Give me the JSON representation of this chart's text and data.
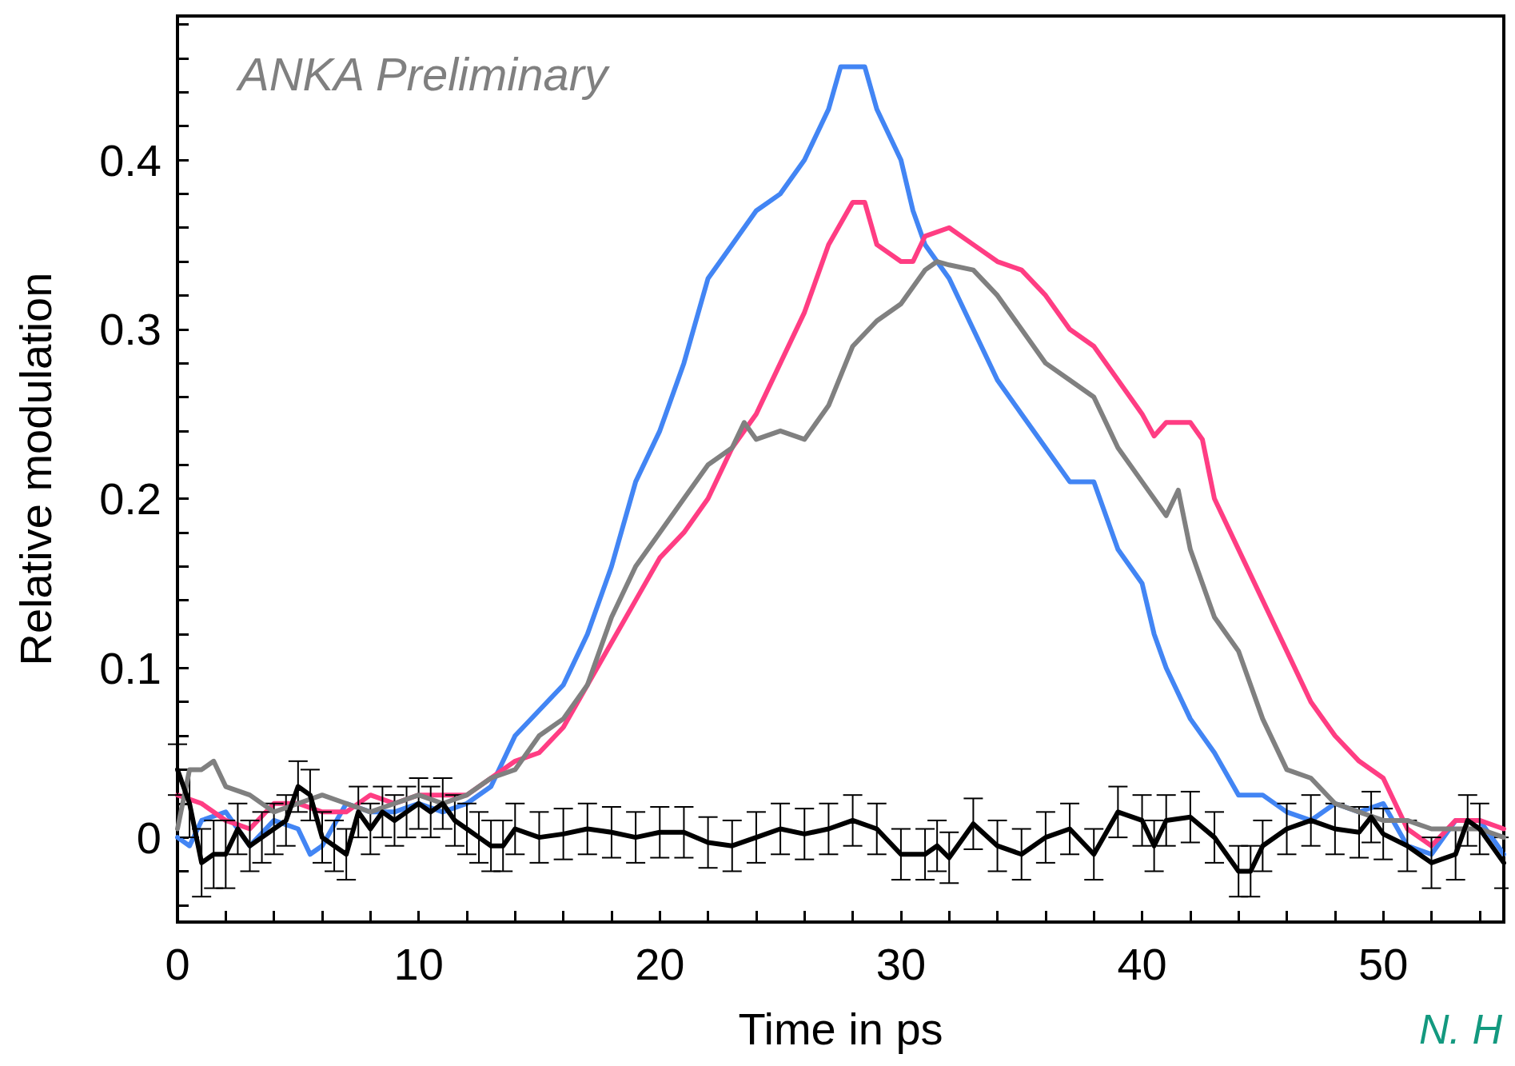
{
  "chart_data": {
    "type": "line",
    "xlabel": "Time in ps",
    "ylabel": "Relative modulation",
    "annotations": [
      "ANKA Preliminary",
      "N. H"
    ],
    "xlim": [
      0,
      55
    ],
    "xticks": [
      0,
      {
        "value": 2,
        "label": null
      },
      {
        "value": 4,
        "label": null
      },
      {
        "value": 6,
        "label": null
      },
      {
        "value": 8,
        "label": null
      },
      10,
      {
        "value": 12,
        "label": null
      },
      {
        "value": 14,
        "label": null
      },
      {
        "value": 16,
        "label": null
      },
      {
        "value": 18,
        "label": null
      },
      20,
      {
        "value": 22,
        "label": null
      },
      {
        "value": 24,
        "label": null
      },
      {
        "value": 26,
        "label": null
      },
      {
        "value": 28,
        "label": null
      },
      30,
      {
        "value": 32,
        "label": null
      },
      {
        "value": 34,
        "label": null
      },
      {
        "value": 36,
        "label": null
      },
      {
        "value": 38,
        "label": null
      },
      40,
      {
        "value": 42,
        "label": null
      },
      {
        "value": 44,
        "label": null
      },
      {
        "value": 46,
        "label": null
      },
      {
        "value": 48,
        "label": null
      },
      50,
      {
        "value": 52,
        "label": null
      },
      {
        "value": 54,
        "label": null
      }
    ],
    "ylim": [
      -0.05,
      0.485
    ],
    "yticks": [
      {
        "value": -0.04,
        "label": null
      },
      {
        "value": -0.02,
        "label": null
      },
      0,
      {
        "value": 0.02,
        "label": null
      },
      {
        "value": 0.04,
        "label": null
      },
      {
        "value": 0.06,
        "label": null
      },
      {
        "value": 0.08,
        "label": null
      },
      0.1,
      {
        "value": 0.12,
        "label": null
      },
      {
        "value": 0.14,
        "label": null
      },
      {
        "value": 0.16,
        "label": null
      },
      {
        "value": 0.18,
        "label": null
      },
      0.2,
      {
        "value": 0.22,
        "label": null
      },
      {
        "value": 0.24,
        "label": null
      },
      {
        "value": 0.26,
        "label": null
      },
      {
        "value": 0.28,
        "label": null
      },
      0.3,
      {
        "value": 0.32,
        "label": null
      },
      {
        "value": 0.34,
        "label": null
      },
      {
        "value": 0.36,
        "label": null
      },
      {
        "value": 0.38,
        "label": null
      },
      0.4,
      {
        "value": 0.42,
        "label": null
      },
      {
        "value": 0.44,
        "label": null
      },
      {
        "value": 0.46,
        "label": null
      },
      {
        "value": 0.48,
        "label": null
      }
    ],
    "grid": false,
    "marker": "none",
    "line_style": "solid",
    "series": [
      {
        "color": "#4285f4",
        "x": [
          0,
          0.5,
          1,
          2,
          3,
          4,
          5,
          5.5,
          6,
          7,
          8,
          9,
          10,
          11,
          12,
          13,
          14,
          15,
          16,
          17,
          18,
          19,
          20,
          21,
          22,
          23,
          24,
          25,
          26,
          27,
          27.5,
          28.5,
          29,
          30,
          30.5,
          31,
          32,
          33,
          34,
          35,
          36,
          37,
          38,
          39,
          40,
          40.5,
          41,
          42,
          43,
          44,
          45,
          46,
          47,
          48,
          49,
          50,
          51,
          52,
          53,
          54,
          55
        ],
        "values": [
          0,
          -0.005,
          0.01,
          0.015,
          -0.005,
          0.01,
          0.005,
          -0.01,
          -0.005,
          0.02,
          0.015,
          0.015,
          0.02,
          0.015,
          0.02,
          0.03,
          0.06,
          0.075,
          0.09,
          0.12,
          0.16,
          0.21,
          0.24,
          0.28,
          0.33,
          0.35,
          0.37,
          0.38,
          0.4,
          0.43,
          0.455,
          0.455,
          0.43,
          0.4,
          0.37,
          0.35,
          0.33,
          0.3,
          0.27,
          0.25,
          0.23,
          0.21,
          0.21,
          0.17,
          0.15,
          0.12,
          0.1,
          0.07,
          0.05,
          0.025,
          0.025,
          0.015,
          0.01,
          0.02,
          0.015,
          0.02,
          -0.005,
          -0.01,
          0.01,
          0.01,
          -0.01
        ]
      },
      {
        "color": "#ff3d83",
        "x": [
          0,
          1,
          2,
          3,
          4,
          5,
          6,
          7,
          8,
          9,
          10,
          11,
          12,
          13,
          14,
          15,
          16,
          17,
          18,
          19,
          20,
          21,
          22,
          23,
          24,
          25,
          26,
          27,
          28,
          28.5,
          29,
          30,
          30.5,
          31,
          32,
          33,
          34,
          35,
          36,
          37,
          38,
          39,
          40,
          40.5,
          41,
          42,
          42.5,
          43,
          44,
          45,
          46,
          47,
          48,
          49,
          50,
          51,
          52,
          53,
          54,
          55
        ],
        "values": [
          0.025,
          0.02,
          0.01,
          0.005,
          0.02,
          0.02,
          0.015,
          0.015,
          0.025,
          0.02,
          0.025,
          0.025,
          0.025,
          0.035,
          0.045,
          0.05,
          0.065,
          0.09,
          0.115,
          0.14,
          0.165,
          0.18,
          0.2,
          0.23,
          0.25,
          0.28,
          0.31,
          0.35,
          0.375,
          0.375,
          0.35,
          0.34,
          0.34,
          0.355,
          0.36,
          0.35,
          0.34,
          0.335,
          0.32,
          0.3,
          0.29,
          0.27,
          0.25,
          0.237,
          0.245,
          0.245,
          0.235,
          0.2,
          0.17,
          0.14,
          0.11,
          0.08,
          0.06,
          0.045,
          0.035,
          0.005,
          -0.005,
          0.01,
          0.01,
          0.005
        ]
      },
      {
        "color": "#808080",
        "x": [
          0,
          0.5,
          1,
          1.5,
          2,
          3,
          4,
          5,
          6,
          7,
          8,
          9,
          10,
          11,
          12,
          13,
          14,
          15,
          16,
          17,
          18,
          19,
          20,
          21,
          22,
          23,
          23.5,
          24,
          25,
          26,
          27,
          28,
          29,
          30,
          31,
          31.5,
          32,
          33,
          34,
          35,
          36,
          37,
          38,
          39,
          40,
          41,
          41.5,
          42,
          43,
          44,
          45,
          46,
          47,
          48,
          49,
          50,
          51,
          52,
          53,
          54,
          55
        ],
        "values": [
          0.005,
          0.04,
          0.04,
          0.045,
          0.03,
          0.025,
          0.015,
          0.02,
          0.025,
          0.02,
          0.015,
          0.02,
          0.025,
          0.02,
          0.025,
          0.035,
          0.04,
          0.06,
          0.07,
          0.09,
          0.13,
          0.16,
          0.18,
          0.2,
          0.22,
          0.23,
          0.245,
          0.235,
          0.24,
          0.235,
          0.255,
          0.29,
          0.305,
          0.315,
          0.335,
          0.34,
          0.338,
          0.335,
          0.32,
          0.3,
          0.28,
          0.27,
          0.26,
          0.23,
          0.21,
          0.19,
          0.205,
          0.17,
          0.13,
          0.11,
          0.07,
          0.04,
          0.035,
          0.02,
          0.015,
          0.01,
          0.01,
          0.005,
          0.005,
          0.005,
          0
        ]
      },
      {
        "color": "#000000",
        "x": [
          0,
          0.5,
          1,
          1.5,
          2,
          2.5,
          3,
          3.5,
          4,
          4.5,
          5,
          5.5,
          6,
          6.5,
          7,
          7.5,
          8,
          8.5,
          9,
          9.5,
          10,
          10.5,
          11,
          11.5,
          12,
          12.5,
          13,
          13.5,
          14,
          15,
          16,
          17,
          18,
          19,
          20,
          21,
          22,
          23,
          24,
          25,
          26,
          27,
          28,
          29,
          30,
          31,
          31.5,
          32,
          33,
          34,
          35,
          36,
          37,
          38,
          39,
          40,
          40.5,
          41,
          42,
          43,
          44,
          44.5,
          45,
          46,
          47,
          48,
          49,
          49.5,
          50,
          51,
          52,
          53,
          53.5,
          54,
          55
        ],
        "values": [
          0.04,
          0.02,
          -0.015,
          -0.01,
          -0.01,
          0.005,
          -0.005,
          0,
          0.005,
          0.01,
          0.03,
          0.025,
          0,
          -0.005,
          -0.01,
          0.015,
          0.005,
          0.015,
          0.01,
          0.015,
          0.02,
          0.015,
          0.02,
          0.01,
          0.005,
          0,
          -0.005,
          -0.005,
          0.005,
          0,
          0.002,
          0.005,
          0.003,
          0,
          0.003,
          0.003,
          -0.003,
          -0.005,
          0,
          0.005,
          0.002,
          0.005,
          0.01,
          0.005,
          -0.01,
          -0.01,
          -0.005,
          -0.012,
          0.008,
          -0.005,
          -0.01,
          0,
          0.005,
          -0.01,
          0.015,
          0.01,
          -0.005,
          0.01,
          0.012,
          0,
          -0.02,
          -0.02,
          -0.005,
          0.005,
          0.01,
          0.005,
          0.003,
          0.012,
          0.002,
          -0.005,
          -0.015,
          -0.01,
          0.01,
          0.005,
          -0.015
        ],
        "errors": [
          0.015,
          0.02,
          0.02,
          0.02,
          0.02,
          0.015,
          0.015,
          0.015,
          0.015,
          0.015,
          0.015,
          0.015,
          0.015,
          0.015,
          0.015,
          0.015,
          0.015,
          0.015,
          0.015,
          0.015,
          0.015,
          0.015,
          0.015,
          0.015,
          0.015,
          0.015,
          0.015,
          0.015,
          0.015,
          0.015,
          0.015,
          0.015,
          0.015,
          0.015,
          0.015,
          0.015,
          0.015,
          0.015,
          0.015,
          0.015,
          0.015,
          0.015,
          0.015,
          0.015,
          0.015,
          0.015,
          0.015,
          0.015,
          0.015,
          0.015,
          0.015,
          0.015,
          0.015,
          0.015,
          0.015,
          0.015,
          0.015,
          0.015,
          0.015,
          0.015,
          0.015,
          0.015,
          0.015,
          0.015,
          0.015,
          0.015,
          0.015,
          0.015,
          0.015,
          0.015,
          0.015,
          0.015,
          0.015,
          0.015,
          0.015
        ]
      }
    ]
  }
}
